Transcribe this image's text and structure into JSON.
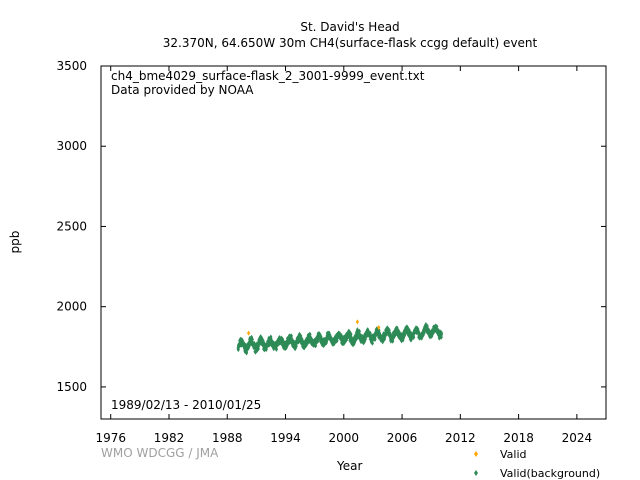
{
  "header": {
    "station": "St. David's Head",
    "subtitle": "32.370N, 64.650W 30m    CH4(surface-flask ccgg default) event"
  },
  "annotation": {
    "file": "ch4_bme4029_surface-flask_2_3001-9999_event.txt",
    "provider": "Data provided by NOAA",
    "period": "1989/02/13 - 2010/01/25"
  },
  "credit": "WMO WDCGG / JMA",
  "colors": {
    "valid": "#ffa500",
    "background": "#2e8b57",
    "axis": "#000000"
  },
  "chart_data": {
    "type": "scatter",
    "xlabel": "Year",
    "ylabel": "ppb",
    "xlim": [
      1975,
      2027
    ],
    "ylim": [
      1300,
      3500
    ],
    "xticks": [
      1976,
      1982,
      1988,
      1994,
      2000,
      2006,
      2012,
      2018,
      2024
    ],
    "yticks": [
      1500,
      2000,
      2500,
      3000,
      3500
    ],
    "legend": {
      "position": "bottom-right"
    },
    "series": [
      {
        "name": "Valid",
        "marker": "diamond",
        "color": "#ffa500",
        "points": [
          [
            1990.2,
            1835
          ],
          [
            2001.4,
            1905
          ],
          [
            2003.6,
            1870
          ]
        ]
      },
      {
        "name": "Valid(background)",
        "marker": "diamond",
        "color": "#2e8b57",
        "trend": {
          "x_start": 1989.12,
          "x_end": 2010.07,
          "y_start": 1755,
          "y_end": 1848,
          "seasonal_amplitude": 22,
          "scatter": 28,
          "samples_per_year": 60
        }
      }
    ]
  }
}
